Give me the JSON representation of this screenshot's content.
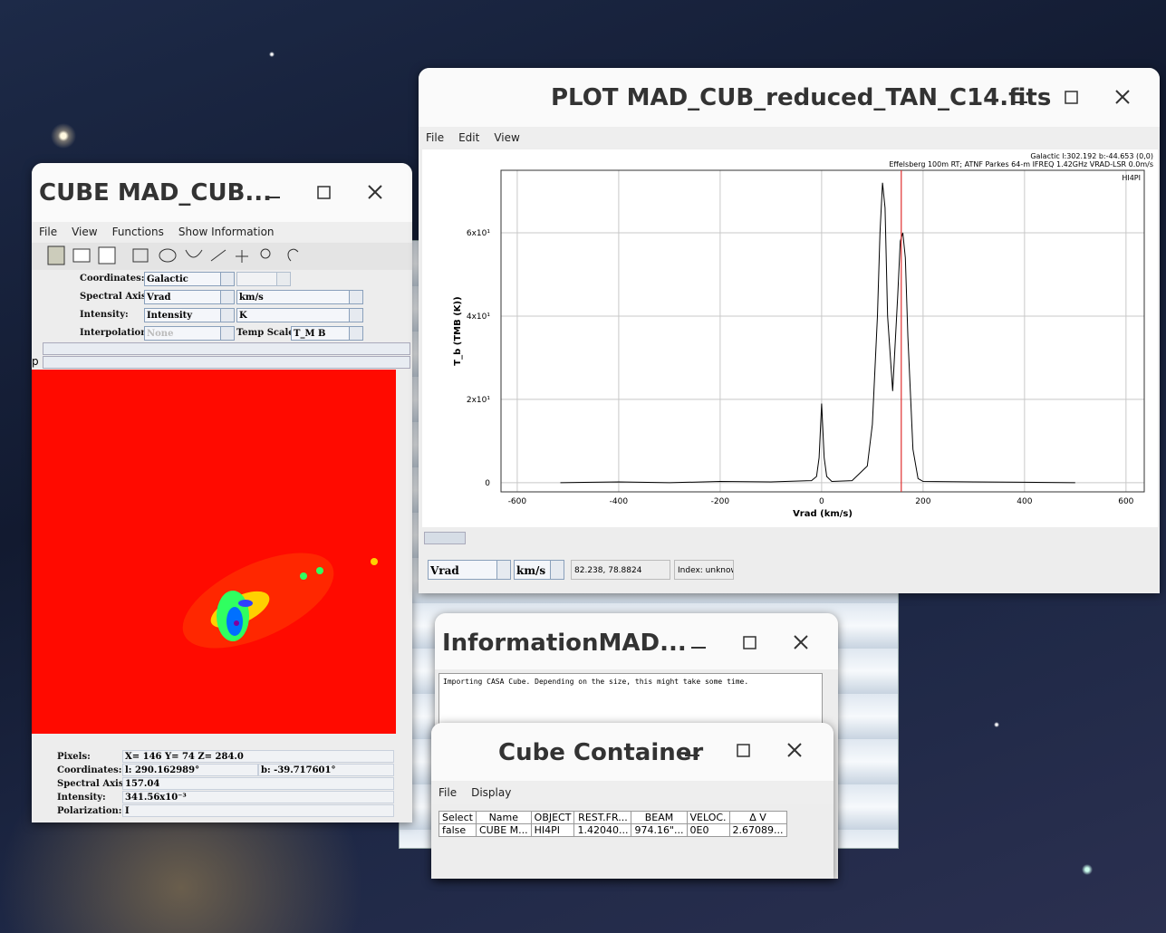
{
  "cube_window": {
    "title": "CUBE MAD_CUB...",
    "menu": [
      "File",
      "View",
      "Functions",
      "Show Information"
    ],
    "controls": [
      {
        "label": "Coordinates:",
        "value": "Galactic"
      },
      {
        "label": "Spectral Axis:",
        "value": "Vrad",
        "unit": "km/s"
      },
      {
        "label": "Intensity:",
        "value": "Intensity",
        "unit": "K"
      },
      {
        "label": "Interpolation:",
        "value": "None",
        "extra_label": "Temp Scale:",
        "extra_value": "T_M B"
      }
    ],
    "slider_label": "p",
    "status": [
      {
        "label": "Pixels:",
        "value": "X= 146  Y= 74  Z= 284.0"
      },
      {
        "label": "Coordinates:",
        "value": "l: 290.162989°",
        "value2": "b: -39.717601°"
      },
      {
        "label": "Spectral Axis:",
        "value": "157.04"
      },
      {
        "label": "Intensity:",
        "value": "341.56x10⁻³"
      },
      {
        "label": "Polarization:",
        "value": "I"
      }
    ]
  },
  "plot_window": {
    "title": "PLOT MAD_CUB_reduced_TAN_C14.fits",
    "menu": [
      "File",
      "Edit",
      "View"
    ],
    "chart": {
      "type": "line",
      "annotations": [
        "Galactic l:302.192 b:-44.653 (0,0)",
        "Effelsberg 100m RT; ATNF Parkes 64-m IFREQ 1.42GHz VRAD-LSR 0.0m/s",
        "HI4PI"
      ],
      "xlabel": "Vrad (km/s)",
      "ylabel": "T_b (TMB (K))",
      "x": [
        -515,
        -400,
        -300,
        -200,
        -100,
        -20,
        -10,
        -5,
        0,
        5,
        10,
        20,
        60,
        90,
        100,
        110,
        115,
        120,
        125,
        130,
        140,
        150,
        155,
        160,
        165,
        170,
        180,
        190,
        200,
        300,
        400,
        500
      ],
      "y": [
        0,
        0.2,
        0,
        0.3,
        0.2,
        0.5,
        1.5,
        6,
        19,
        6,
        1.5,
        0.3,
        0.5,
        4,
        14,
        40,
        60,
        72,
        66,
        40,
        22,
        45,
        58,
        60,
        54,
        35,
        8,
        1,
        0.3,
        0.2,
        0.1,
        0
      ],
      "color": "#000000",
      "marker_x": 157,
      "marker_color": "#e03030",
      "xlim": [
        -632,
        636
      ],
      "ylim": [
        -2.2,
        75
      ],
      "xticks": [
        -600,
        -400,
        -200,
        0,
        200,
        400,
        600
      ],
      "yticks": [
        0,
        {
          "value": 20,
          "label": "2x10¹"
        },
        {
          "value": 40,
          "label": "4x10¹"
        },
        {
          "value": 60,
          "label": "6x10¹"
        }
      ],
      "grid": true
    },
    "axis_select": "Vrad",
    "unit_select": "km/s",
    "cursor": "82.238, 78.8824",
    "index": "Index: unknow"
  },
  "info_window": {
    "title": "InformationMAD...",
    "log": "Importing CASA Cube. Depending on the size, this might take some time."
  },
  "container_window": {
    "title": "Cube Container",
    "menu": [
      "File",
      "Display"
    ],
    "table": {
      "header": [
        "Select",
        "Name",
        "OBJECT",
        "REST.FR...",
        "BEAM",
        "VELOC.",
        "Δ V"
      ],
      "rows": [
        [
          "false",
          "CUBE M...",
          "HI4PI",
          "1.42040...",
          "974.16\"...",
          "0E0",
          "2.67089..."
        ]
      ]
    }
  }
}
